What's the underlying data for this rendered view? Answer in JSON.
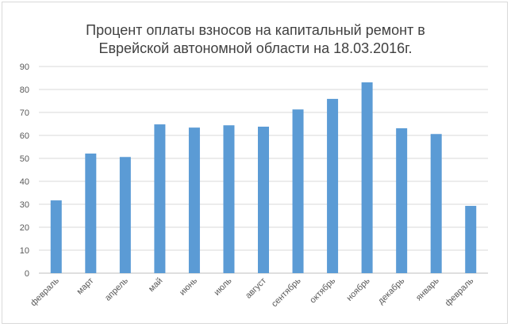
{
  "chart_data": {
    "type": "bar",
    "title_lines": [
      "Процент оплаты взносов на капитальный ремонт в",
      "Еврейской автономной области на 18.03.2016г."
    ],
    "categories": [
      "февраль",
      "март",
      "апрель",
      "май",
      "июнь",
      "июль",
      "август",
      "сентябрь",
      "октябрь",
      "ноябрь",
      "декабрь",
      "январь",
      "февраль"
    ],
    "values": [
      31.7,
      52.1,
      50.6,
      64.8,
      63.4,
      64.4,
      63.8,
      71.3,
      75.9,
      83.1,
      63.1,
      60.6,
      29.3
    ],
    "ylim": [
      0,
      90
    ],
    "yticks": [
      0,
      10,
      20,
      30,
      40,
      50,
      60,
      70,
      80,
      90
    ],
    "grid": true,
    "legend": "none",
    "bar_color": "#5b9bd5"
  }
}
